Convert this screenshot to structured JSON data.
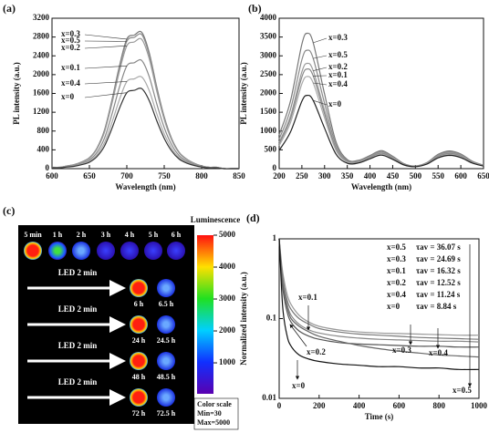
{
  "chart_data": [
    {
      "type": "line",
      "panel_label": "(a)",
      "x_label": "Wavelength (nm)",
      "y_label": "PL intensity (a.u.)",
      "xlim": [
        600,
        850
      ],
      "xticks": [
        600,
        650,
        700,
        750,
        800,
        850
      ],
      "ylim": [
        0,
        3200
      ],
      "yticks": [
        0,
        400,
        800,
        1200,
        1600,
        2000,
        2400,
        2800,
        3200
      ],
      "x": [
        600,
        610,
        620,
        630,
        640,
        650,
        660,
        670,
        680,
        690,
        700,
        710,
        720,
        730,
        740,
        750,
        760,
        770,
        780,
        790,
        800,
        810,
        820,
        830,
        840,
        850
      ],
      "series": [
        {
          "name": "x=0.3",
          "color": "#777777",
          "values": [
            29,
            29,
            58,
            87,
            145,
            232,
            435,
            812,
            1450,
            2175,
            2755,
            2842,
            2900,
            2465,
            1740,
            1102,
            638,
            348,
            203,
            116,
            58,
            29,
            29,
            0,
            0,
            0
          ]
        },
        {
          "name": "x=0.5",
          "color": "#8a8a8a",
          "values": [
            29,
            29,
            57,
            86,
            143,
            228,
            428,
            798,
            1425,
            2138,
            2708,
            2793,
            2850,
            2423,
            1710,
            1083,
            627,
            342,
            200,
            114,
            57,
            29,
            29,
            0,
            0,
            0
          ]
        },
        {
          "name": "x=0.2",
          "color": "#9a9a9a",
          "values": [
            28,
            28,
            55,
            83,
            138,
            220,
            413,
            770,
            1375,
            2063,
            2613,
            2695,
            2750,
            2338,
            1650,
            1045,
            605,
            330,
            193,
            110,
            55,
            28,
            28,
            0,
            0,
            0
          ]
        },
        {
          "name": "x=0.1",
          "color": "#888888",
          "values": [
            23,
            23,
            46,
            69,
            115,
            184,
            345,
            644,
            1150,
            1725,
            2185,
            2254,
            2300,
            1955,
            1380,
            874,
            506,
            276,
            161,
            92,
            46,
            23,
            23,
            0,
            0,
            0
          ]
        },
        {
          "name": "x=0.4",
          "color": "#aaaaaa",
          "values": [
            20,
            20,
            39,
            59,
            98,
            156,
            293,
            546,
            975,
            1463,
            1853,
            1911,
            1950,
            1658,
            1170,
            741,
            429,
            234,
            137,
            78,
            39,
            20,
            20,
            0,
            0,
            0
          ]
        },
        {
          "name": "x=0",
          "color": "#333333",
          "values": [
            17,
            17,
            34,
            51,
            85,
            136,
            255,
            476,
            850,
            1275,
            1615,
            1666,
            1700,
            1445,
            1020,
            646,
            374,
            204,
            119,
            68,
            34,
            17,
            17,
            0,
            0,
            0
          ]
        }
      ]
    },
    {
      "type": "line",
      "panel_label": "(b)",
      "x_label": "Wavelength (nm)",
      "y_label": "PL intensity (a.u.)",
      "xlim": [
        200,
        650
      ],
      "xticks": [
        200,
        250,
        300,
        350,
        400,
        450,
        500,
        550,
        600,
        650
      ],
      "ylim": [
        0,
        4000
      ],
      "yticks": [
        0,
        500,
        1000,
        1500,
        2000,
        2500,
        3000,
        3500,
        4000
      ],
      "x": [
        200,
        225,
        250,
        262,
        275,
        300,
        325,
        350,
        375,
        400,
        425,
        450,
        475,
        500,
        525,
        550,
        575,
        600,
        625,
        650
      ],
      "series": [
        {
          "name": "x=0.3",
          "color": "#777777",
          "values": [
            900,
            1800,
            3312,
            3600,
            3348,
            1980,
            720,
            240,
            222,
            350,
            480,
            330,
            130,
            70,
            160,
            380,
            470,
            390,
            200,
            90
          ]
        },
        {
          "name": "x=0.5",
          "color": "#8a8a8a",
          "values": [
            788,
            1575,
            2898,
            3150,
            2930,
            1733,
            630,
            215,
            206,
            333,
            456,
            314,
            124,
            67,
            152,
            361,
            447,
            371,
            190,
            86
          ]
        },
        {
          "name": "x=0.2",
          "color": "#9a9a9a",
          "values": [
            700,
            1400,
            2576,
            2800,
            2604,
            1540,
            560,
            194,
            191,
            315,
            432,
            297,
            117,
            63,
            144,
            342,
            423,
            351,
            180,
            81
          ]
        },
        {
          "name": "x=0.1",
          "color": "#888888",
          "values": [
            663,
            1325,
            2438,
            2650,
            2465,
            1458,
            530,
            184,
            181,
            298,
            408,
            281,
            111,
            60,
            136,
            323,
            400,
            332,
            170,
            77
          ]
        },
        {
          "name": "x=0.4",
          "color": "#aaaaaa",
          "values": [
            613,
            1225,
            2254,
            2450,
            2279,
            1348,
            490,
            171,
            169,
            280,
            384,
            264,
            104,
            56,
            128,
            304,
            376,
            312,
            160,
            72
          ]
        },
        {
          "name": "x=0",
          "color": "#222222",
          "values": [
            488,
            975,
            1794,
            1950,
            1814,
            1073,
            390,
            143,
            152,
            263,
            360,
            248,
            98,
            53,
            120,
            285,
            353,
            293,
            150,
            68
          ]
        }
      ]
    },
    {
      "type": "line",
      "panel_label": "(d)",
      "x_label": "Time (s)",
      "y_label": "Normalized intensity (a.u.)",
      "log_y": true,
      "xlim": [
        0,
        1000
      ],
      "xticks": [
        0,
        200,
        400,
        600,
        800,
        1000
      ],
      "ylim": [
        0.01,
        1
      ],
      "yticks": [
        0.01,
        0.1,
        1
      ],
      "x": [
        0,
        10,
        20,
        40,
        60,
        100,
        150,
        200,
        300,
        400,
        500,
        600,
        700,
        800,
        900,
        1000
      ],
      "series": [
        {
          "name": "x=0.5",
          "color": "#999999",
          "values": [
            1,
            0.55,
            0.35,
            0.2,
            0.15,
            0.11,
            0.09,
            0.08,
            0.072,
            0.068,
            0.066,
            0.065,
            0.064,
            0.063,
            0.062,
            0.062
          ]
        },
        {
          "name": "x=0.3",
          "color": "#777777",
          "values": [
            1,
            0.5,
            0.3,
            0.17,
            0.13,
            0.1,
            0.085,
            0.075,
            0.068,
            0.064,
            0.062,
            0.06,
            0.058,
            0.057,
            0.056,
            0.055
          ]
        },
        {
          "name": "x=0.1",
          "color": "#888888",
          "values": [
            1,
            0.45,
            0.27,
            0.15,
            0.11,
            0.085,
            0.072,
            0.066,
            0.06,
            0.057,
            0.055,
            0.054,
            0.053,
            0.052,
            0.052,
            0.051
          ]
        },
        {
          "name": "x=0.2",
          "color": "#555555",
          "values": [
            1,
            0.4,
            0.22,
            0.12,
            0.09,
            0.07,
            0.06,
            0.055,
            0.05,
            0.048,
            0.047,
            0.046,
            0.045,
            0.045,
            0.044,
            0.044
          ]
        },
        {
          "name": "x=0.4",
          "color": "#666666",
          "values": [
            1,
            0.42,
            0.25,
            0.14,
            0.1,
            0.08,
            0.068,
            0.06,
            0.052,
            0.046,
            0.042,
            0.039,
            0.037,
            0.035,
            0.034,
            0.033
          ]
        },
        {
          "name": "x=0",
          "color": "#111111",
          "values": [
            1,
            0.3,
            0.12,
            0.06,
            0.045,
            0.035,
            0.031,
            0.029,
            0.027,
            0.026,
            0.025,
            0.025,
            0.024,
            0.024,
            0.023,
            0.023
          ]
        }
      ],
      "lifetimes": [
        {
          "sample": "x=0.5",
          "tau": "τav = 36.07 s"
        },
        {
          "sample": "x=0.3",
          "tau": "τav = 24.69 s"
        },
        {
          "sample": "x=0.1",
          "tau": "τav = 16.32 s"
        },
        {
          "sample": "x=0.2",
          "tau": "τav = 12.52 s"
        },
        {
          "sample": "x=0.4",
          "tau": "τav = 11.24 s"
        },
        {
          "sample": "x=0",
          "tau": "τav = 8.84 s"
        }
      ]
    }
  ],
  "luminescence_image": {
    "panel_label": "(c)",
    "time_labels": [
      "5 min",
      "1 h",
      "2 h",
      "3 h",
      "4 h",
      "5 h",
      "6 h"
    ],
    "rows": [
      {
        "label": "LED 2 min",
        "times": [
          "6 h",
          "6.5 h"
        ]
      },
      {
        "label": "LED 2 min",
        "times": [
          "24 h",
          "24.5 h"
        ]
      },
      {
        "label": "LED 2 min",
        "times": [
          "48 h",
          "48.5 h"
        ]
      },
      {
        "label": "LED 2 min",
        "times": [
          "72 h",
          "72.5 h"
        ]
      }
    ],
    "colorbar": {
      "title": "Luminescence",
      "ylim": [
        30,
        5000
      ],
      "yticks": [
        1000,
        2000,
        3000,
        4000,
        5000
      ]
    },
    "color_scale": {
      "title": "Color scale",
      "min": "Min=30",
      "max": "Max=5000"
    }
  }
}
